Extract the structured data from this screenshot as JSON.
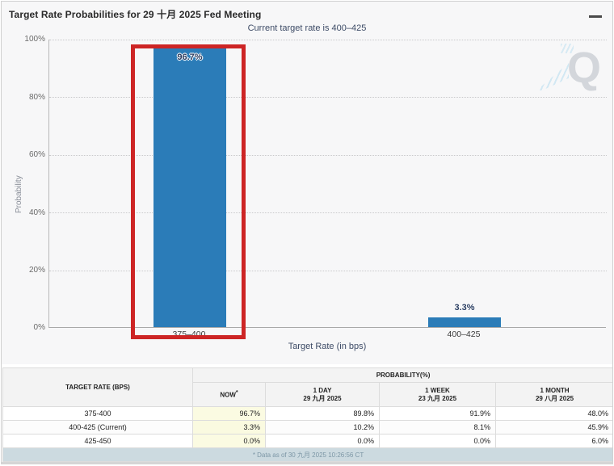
{
  "header": {
    "title": "Target Rate Probabilities for 29 十月 2025 Fed Meeting",
    "subtitle": "Current target rate is 400–425",
    "menu_icon": "hamburger-menu"
  },
  "chart_data": {
    "type": "bar",
    "title": "Target Rate Probabilities for 29 十月 2025 Fed Meeting",
    "subtitle": "Current target rate is 400–425",
    "categories": [
      "375–400",
      "400–425"
    ],
    "values": [
      96.7,
      3.3
    ],
    "value_labels": [
      "96.7%",
      "3.3%"
    ],
    "xlabel": "Target Rate (in bps)",
    "ylabel": "Probability",
    "ylim": [
      0,
      100
    ],
    "yticks": [
      "100%",
      "80%",
      "60%",
      "40%",
      "20%",
      "0%"
    ],
    "grid": "horizontal dotted",
    "legend": "none",
    "bar_color": "#2b7cb8",
    "highlight_box": {
      "category": "375–400",
      "color": "#cd2525"
    }
  },
  "watermark": {
    "letter": "Q"
  },
  "table": {
    "col1_header": "TARGET RATE (BPS)",
    "group_header": "PROBABILITY(%)",
    "subheaders": [
      {
        "label": "NOW",
        "sup": "*",
        "date": ""
      },
      {
        "label": "1 DAY",
        "date": "29 九月 2025"
      },
      {
        "label": "1 WEEK",
        "date": "23 九月 2025"
      },
      {
        "label": "1 MONTH",
        "date": "29 八月 2025"
      }
    ],
    "rows": [
      {
        "rate": "375-400",
        "now": "96.7%",
        "day": "89.8%",
        "week": "91.9%",
        "month": "48.0%"
      },
      {
        "rate": "400-425 (Current)",
        "now": "3.3%",
        "day": "10.2%",
        "week": "8.1%",
        "month": "45.9%"
      },
      {
        "rate": "425-450",
        "now": "0.0%",
        "day": "0.0%",
        "week": "0.0%",
        "month": "6.0%"
      }
    ],
    "footnote": "* Data as of 30 九月 2025 10:26:56 CT"
  },
  "colors": {
    "bar": "#2b7cb8",
    "highlight": "#cd2525",
    "chart_bg": "#f7f7f8",
    "now_column_bg": "#fbfbe2",
    "footer_bg": "#ccdae0"
  }
}
